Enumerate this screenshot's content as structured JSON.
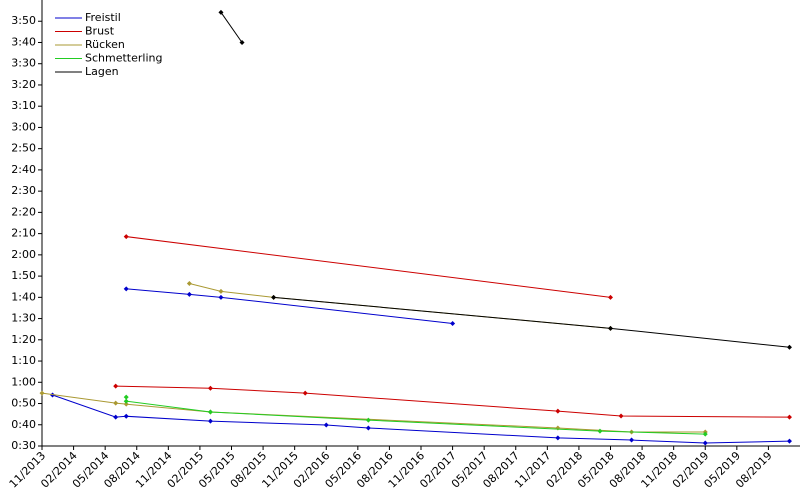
{
  "chart_data": {
    "type": "line",
    "xlim": [
      "11/2013",
      "11/2019"
    ],
    "xticks": [
      "11/2013",
      "02/2014",
      "05/2014",
      "08/2014",
      "11/2014",
      "02/2015",
      "05/2015",
      "08/2015",
      "11/2015",
      "02/2016",
      "05/2016",
      "08/2016",
      "11/2016",
      "02/2017",
      "05/2017",
      "08/2017",
      "11/2017",
      "02/2018",
      "05/2018",
      "08/2018",
      "11/2018",
      "02/2019",
      "05/2019",
      "08/2019"
    ],
    "ylim": [
      30,
      240
    ],
    "yticks": [
      {
        "value": 30,
        "label": "0:30"
      },
      {
        "value": 40,
        "label": "0:40"
      },
      {
        "value": 50,
        "label": "0:50"
      },
      {
        "value": 60,
        "label": "1:00"
      },
      {
        "value": 70,
        "label": "1:10"
      },
      {
        "value": 80,
        "label": "1:20"
      },
      {
        "value": 90,
        "label": "1:30"
      },
      {
        "value": 100,
        "label": "1:40"
      },
      {
        "value": 110,
        "label": "1:50"
      },
      {
        "value": 120,
        "label": "2:00"
      },
      {
        "value": 130,
        "label": "2:10"
      },
      {
        "value": 140,
        "label": "2:20"
      },
      {
        "value": 150,
        "label": "2:30"
      },
      {
        "value": 160,
        "label": "2:40"
      },
      {
        "value": 170,
        "label": "2:50"
      },
      {
        "value": 180,
        "label": "3:00"
      },
      {
        "value": 190,
        "label": "3:10"
      },
      {
        "value": 200,
        "label": "3:20"
      },
      {
        "value": 210,
        "label": "3:30"
      },
      {
        "value": 220,
        "label": "3:40"
      },
      {
        "value": 230,
        "label": "3:50"
      }
    ],
    "grid": false,
    "legend": "top-left",
    "series": [
      {
        "name": "Freistil",
        "color": "#0000cc",
        "x": [
          "07/2014",
          "01/2015",
          "04/2015",
          "02/2017",
          null,
          "12/2013",
          "06/2014",
          "07/2014",
          "03/2015",
          "02/2016",
          "06/2016",
          "12/2017",
          "07/2018",
          "02/2019",
          "10/2019"
        ],
        "values": [
          104,
          101.4,
          100,
          87.7,
          null,
          54,
          43.6,
          44,
          41.7,
          39.9,
          38.5,
          33.8,
          32.8,
          31.4,
          32.3
        ]
      },
      {
        "name": "Brust",
        "color": "#cc0000",
        "x": [
          "07/2014",
          "05/2018",
          null,
          "06/2014",
          "03/2015",
          "12/2015",
          "12/2017",
          "06/2018",
          "10/2019"
        ],
        "values": [
          128.6,
          100,
          null,
          58.2,
          57.2,
          54.9,
          46.4,
          44.1,
          43.6
        ]
      },
      {
        "name": "Rücken",
        "color": "#aa9933",
        "x": [
          "01/2015",
          "04/2015",
          "09/2015",
          "05/2018",
          null,
          "11/2013",
          "06/2014",
          "07/2014",
          "03/2015",
          "12/2017",
          "07/2018",
          "02/2019"
        ],
        "values": [
          106.5,
          102.8,
          100,
          85.4,
          null,
          54.9,
          50.2,
          49.7,
          46,
          38.5,
          36.6,
          36.6
        ]
      },
      {
        "name": "Schmetterling",
        "color": "#22cc22",
        "x": [
          "07/2014",
          "07/2014",
          "03/2015",
          "06/2016",
          "04/2018",
          "02/2019"
        ],
        "values": [
          53,
          51.1,
          46,
          42.2,
          37,
          35.6
        ]
      },
      {
        "name": "Lagen",
        "color": "#000000",
        "x": [
          "04/2015",
          "06/2015",
          null,
          "09/2015",
          "05/2018",
          "10/2019"
        ],
        "values": [
          234.2,
          220,
          null,
          100,
          85.4,
          76.5
        ]
      }
    ]
  }
}
